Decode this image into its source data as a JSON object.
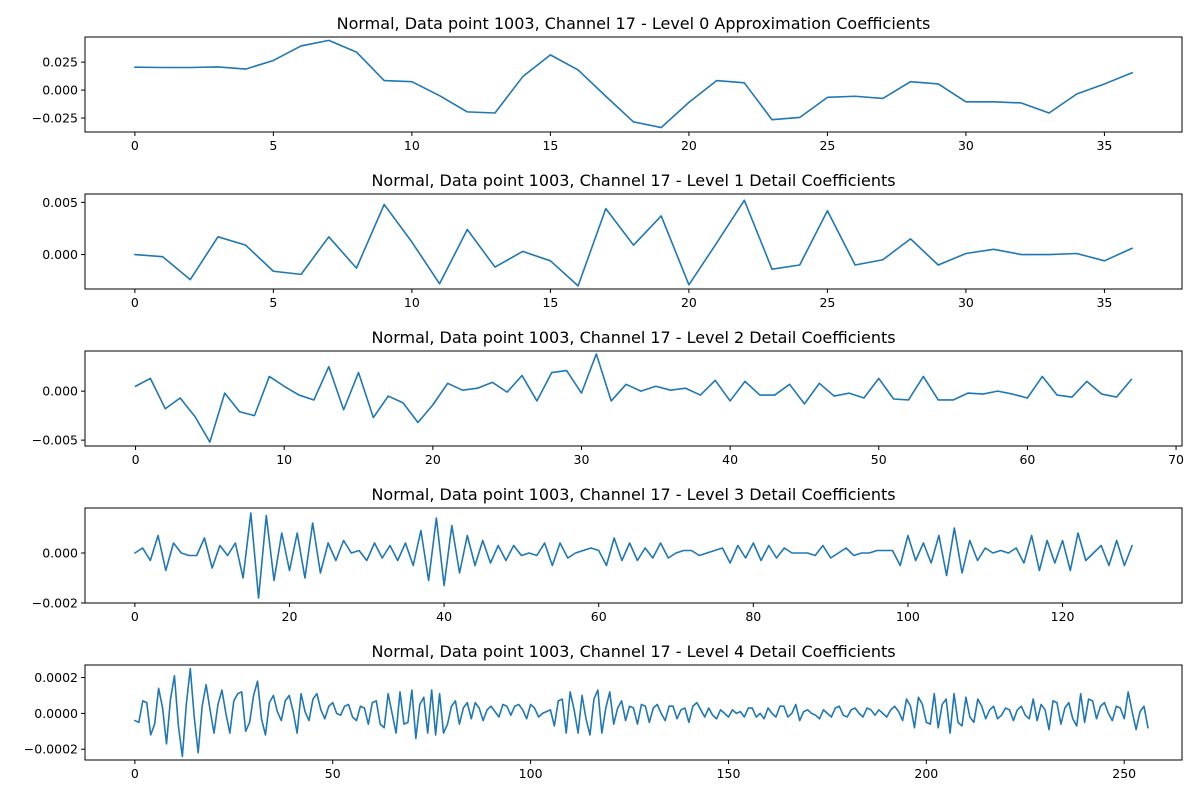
{
  "figure": {
    "line_color": "#1f77b4"
  },
  "chart_data": [
    {
      "type": "line",
      "title": "Normal, Data point 1003, Channel 17 - Level 0 Approximation Coefficients",
      "xlim": [
        -1.8,
        37.8
      ],
      "ylim": [
        -0.0375,
        0.0475
      ],
      "xticks": [
        0,
        5,
        10,
        15,
        20,
        25,
        30,
        35
      ],
      "xtick_labels": [
        "0",
        "5",
        "10",
        "15",
        "20",
        "25",
        "30",
        "35"
      ],
      "yticks": [
        -0.025,
        0.0,
        0.025
      ],
      "ytick_labels": [
        "−0.025",
        "0.000",
        "0.025"
      ],
      "series": [
        {
          "values": [
            0.0205,
            0.0202,
            0.0202,
            0.0207,
            0.0188,
            0.0265,
            0.0395,
            0.0445,
            0.034,
            0.0085,
            0.0075,
            -0.005,
            -0.0195,
            -0.0205,
            0.012,
            0.0315,
            0.018,
            -0.0055,
            -0.0285,
            -0.0335,
            -0.011,
            0.0085,
            0.0065,
            -0.0265,
            -0.0245,
            -0.0065,
            -0.0055,
            -0.0075,
            0.0075,
            0.0055,
            -0.0105,
            -0.0105,
            -0.0115,
            -0.0205,
            -0.0035,
            0.0055,
            0.0155
          ]
        }
      ]
    },
    {
      "type": "line",
      "title": "Normal, Data point 1003, Channel 17 - Level 1 Detail Coefficients",
      "xlim": [
        -1.8,
        37.8
      ],
      "ylim": [
        -0.0033,
        0.0058
      ],
      "xticks": [
        0,
        5,
        10,
        15,
        20,
        25,
        30,
        35
      ],
      "xtick_labels": [
        "0",
        "5",
        "10",
        "15",
        "20",
        "25",
        "30",
        "35"
      ],
      "yticks": [
        0.0,
        0.005
      ],
      "ytick_labels": [
        "0.000",
        "0.005"
      ],
      "series": [
        {
          "values": [
            0.0,
            -0.0002,
            -0.0024,
            0.0017,
            0.0009,
            -0.0016,
            -0.0019,
            0.0017,
            -0.0013,
            0.0048,
            0.0012,
            -0.0028,
            0.0024,
            -0.0012,
            0.0003,
            -0.0006,
            -0.003,
            0.0044,
            0.0009,
            0.0037,
            -0.0029,
            0.0011,
            0.0052,
            -0.0014,
            -0.001,
            0.0042,
            -0.001,
            -0.0005,
            0.0015,
            -0.001,
            0.0001,
            0.0005,
            0.0,
            0.0,
            0.0001,
            -0.0006,
            0.0006
          ]
        }
      ]
    },
    {
      "type": "line",
      "title": "Normal, Data point 1003, Channel 17 - Level 2 Detail Coefficients",
      "xlim": [
        -3.4,
        70.4
      ],
      "ylim": [
        -0.0056,
        0.0041
      ],
      "xticks": [
        0,
        10,
        20,
        30,
        40,
        50,
        60,
        70
      ],
      "xtick_labels": [
        "0",
        "10",
        "20",
        "30",
        "40",
        "50",
        "60",
        "70"
      ],
      "yticks": [
        -0.005,
        0.0
      ],
      "ytick_labels": [
        "−0.005",
        "0.000"
      ],
      "series": [
        {
          "values": [
            0.0005,
            0.0013,
            -0.0018,
            -0.0007,
            -0.0026,
            -0.0052,
            -0.0002,
            -0.0021,
            -0.0025,
            0.0015,
            0.0005,
            -0.0004,
            -0.0009,
            0.0025,
            -0.0019,
            0.0019,
            -0.0027,
            -0.0005,
            -0.0012,
            -0.0032,
            -0.0014,
            0.0008,
            0.0001,
            0.0003,
            0.0009,
            -0.0001,
            0.0016,
            -0.001,
            0.0019,
            0.0021,
            -0.0002,
            0.0038,
            -0.001,
            0.0007,
            0.0,
            0.0005,
            0.0001,
            0.0003,
            -0.0004,
            0.0011,
            -0.001,
            0.001,
            -0.0004,
            -0.0004,
            0.0007,
            -0.0013,
            0.0008,
            -0.0005,
            -0.0002,
            -0.0007,
            0.0013,
            -0.0008,
            -0.0009,
            0.0015,
            -0.0009,
            -0.0009,
            -0.0002,
            -0.0003,
            0.0,
            -0.0003,
            -0.0007,
            0.0015,
            -0.0004,
            -0.0006,
            0.001,
            -0.0003,
            -0.0006,
            0.0012
          ]
        }
      ]
    },
    {
      "type": "line",
      "title": "Normal, Data point 1003, Channel 17 - Level 3 Detail Coefficients",
      "xlim": [
        -6.45,
        135.45
      ],
      "ylim": [
        -0.002,
        0.0018
      ],
      "xticks": [
        0,
        20,
        40,
        60,
        80,
        100,
        120
      ],
      "xtick_labels": [
        "0",
        "20",
        "40",
        "60",
        "80",
        "100",
        "120"
      ],
      "yticks": [
        -0.002,
        0.0
      ],
      "ytick_labels": [
        "−0.002",
        "0.000"
      ],
      "series": [
        {
          "values": [
            0.0,
            0.0002,
            -0.0003,
            0.0007,
            -0.0007,
            0.0004,
            0.0,
            -0.0001,
            -0.0001,
            0.0006,
            -0.0006,
            0.0003,
            -0.0001,
            0.0004,
            -0.001,
            0.0016,
            -0.0018,
            0.0015,
            -0.0011,
            0.0008,
            -0.0007,
            0.0008,
            -0.001,
            0.0012,
            -0.0008,
            0.0004,
            -0.0003,
            0.0005,
            0.0,
            0.0001,
            -0.0003,
            0.0004,
            -0.0002,
            0.0003,
            -0.0003,
            0.0004,
            -0.0005,
            0.0009,
            -0.0011,
            0.0014,
            -0.0013,
            0.0011,
            -0.0008,
            0.0007,
            -0.0005,
            0.0005,
            -0.0004,
            0.0003,
            -0.0003,
            0.0003,
            -0.0001,
            0.0,
            -0.0001,
            0.0004,
            -0.0005,
            0.0004,
            -0.0002,
            0.0,
            0.0001,
            0.0002,
            0.0001,
            -0.0005,
            0.0006,
            -0.0003,
            0.0004,
            -0.0003,
            0.0002,
            -0.0002,
            0.0004,
            -0.0002,
            0.0,
            0.0001,
            0.0001,
            -0.0001,
            0.0,
            0.0001,
            0.0002,
            -0.0004,
            0.0003,
            -0.0002,
            0.0004,
            -0.0003,
            0.0003,
            -0.0002,
            0.0002,
            0.0,
            0.0,
            0.0,
            -0.0001,
            0.0003,
            -0.0002,
            0.0,
            0.0002,
            -0.0001,
            0.0,
            0.0,
            0.0001,
            0.0001,
            0.0001,
            -0.0005,
            0.0007,
            -0.0003,
            0.0004,
            -0.0004,
            0.0007,
            -0.0009,
            0.001,
            -0.0008,
            0.0005,
            -0.0003,
            0.0002,
            0.0,
            0.0001,
            0.0,
            0.0002,
            -0.0004,
            0.0007,
            -0.0007,
            0.0005,
            -0.0004,
            0.0005,
            -0.0007,
            0.0008,
            -0.0003,
            0.0,
            0.0003,
            -0.0005,
            0.0005,
            -0.0005,
            0.0003
          ]
        }
      ]
    },
    {
      "type": "line",
      "title": "Normal, Data point 1003, Channel 17 - Level 4 Detail Coefficients",
      "xlim": [
        -12.6,
        264.6
      ],
      "ylim": [
        -0.00026,
        0.00027
      ],
      "xticks": [
        0,
        50,
        100,
        150,
        200,
        250
      ],
      "xtick_labels": [
        "0",
        "50",
        "100",
        "150",
        "200",
        "250"
      ],
      "yticks": [
        -0.0002,
        0.0,
        0.0002
      ],
      "ytick_labels": [
        "−0.0002",
        "0.0000",
        "0.0002"
      ],
      "series": [
        {
          "values": [
            -4e-05,
            -5e-05,
            7e-05,
            6e-05,
            -0.00012,
            -6e-05,
            0.00014,
            3e-05,
            -0.00017,
            8e-05,
            0.00021,
            -7e-05,
            -0.00024,
            5e-05,
            0.00025,
            -2e-05,
            -0.00022,
            4e-05,
            0.00016,
            2e-05,
            -0.00011,
            5e-05,
            0.00013,
            0.0,
            -0.00011,
            7e-05,
            0.00011,
            0.00012,
            -0.0001,
            -5e-05,
            0.0001,
            0.00018,
            -3e-05,
            -0.00012,
            6e-05,
            0.0001,
            1e-05,
            -4e-05,
            7e-05,
            0.0001,
            1e-05,
            -0.00011,
            0.00011,
            1e-05,
            -4e-05,
            8e-05,
            0.00011,
            2e-05,
            -3e-05,
            4e-05,
            6e-05,
            0.0,
            -1e-05,
            4e-05,
            5e-05,
            -2e-05,
            -4e-05,
            4e-05,
            3e-05,
            -6e-05,
            6e-05,
            7e-05,
            -6e-05,
            -8e-05,
            0.00011,
            0.0,
            -0.00011,
            0.00012,
            -6e-05,
            -5e-05,
            0.00013,
            -0.00014,
            5e-05,
            9e-05,
            -0.00011,
            0.00013,
            -0.00012,
            0.00011,
            -0.00011,
            -6e-05,
            4e-05,
            7e-05,
            -6e-05,
            3e-05,
            6e-05,
            -3e-05,
            6e-05,
            3e-05,
            -4e-05,
            2e-05,
            4e-05,
            1e-05,
            -2e-05,
            5e-05,
            4e-05,
            -1e-05,
            4e-05,
            5e-05,
            2e-05,
            -3e-05,
            5e-05,
            3e-05,
            -2e-05,
            0.0,
            1e-05,
            2e-05,
            -7e-05,
            7e-05,
            8e-05,
            -0.00011,
            0.00012,
            2e-05,
            -0.00011,
            0.0001,
            -3e-05,
            -0.00012,
            8e-05,
            0.00013,
            -0.00011,
            3e-05,
            0.00012,
            -6e-05,
            3e-05,
            7e-05,
            -4e-05,
            4e-05,
            3e-05,
            -6e-05,
            5e-05,
            4e-05,
            -5e-05,
            3e-05,
            5e-05,
            0.0,
            -4e-05,
            4e-05,
            4e-05,
            -3e-05,
            2e-05,
            3e-05,
            -5e-05,
            4e-05,
            6e-05,
            2e-05,
            -2e-05,
            3e-05,
            -1e-05,
            -3e-05,
            2e-05,
            0.0,
            -2e-05,
            2e-05,
            0.0,
            1e-05,
            -2e-05,
            3e-05,
            3e-05,
            -2e-05,
            0.0,
            -3e-05,
            3e-05,
            0.0,
            -2e-05,
            4e-05,
            4e-05,
            -2e-05,
            0.0,
            5e-05,
            -4e-05,
            1e-05,
            2e-05,
            0.0,
            -1e-05,
            -3e-05,
            2e-05,
            0.0,
            -2e-05,
            3e-05,
            4e-05,
            -1e-05,
            -2e-05,
            2e-05,
            3e-05,
            0.0,
            -2e-05,
            3e-05,
            2e-05,
            -1e-05,
            2e-05,
            0.0,
            -2e-05,
            2e-05,
            4e-05,
            1e-05,
            -4e-05,
            8e-05,
            4e-05,
            -8e-05,
            9e-05,
            5e-05,
            -5e-05,
            -6e-05,
            0.00011,
            -8e-05,
            5e-05,
            8e-05,
            -0.00011,
            0.00011,
            -5e-05,
            -7e-05,
            9e-05,
            -2e-05,
            -5e-05,
            8e-05,
            4e-05,
            -3e-05,
            2e-05,
            4e-05,
            -3e-05,
            -1e-05,
            3e-05,
            2e-05,
            -4e-05,
            2e-05,
            4e-05,
            -1e-05,
            -3e-05,
            8e-05,
            -4e-05,
            5e-05,
            2e-05,
            -9e-05,
            7e-05,
            6e-05,
            -6e-05,
            3e-05,
            6e-05,
            -3e-05,
            -7e-05,
            0.00011,
            -5e-05,
            8e-05,
            7e-05,
            -3e-05,
            4e-05,
            6e-05,
            0.0,
            -4e-05,
            4e-05,
            3e-05,
            -3e-05,
            0.00012,
            1e-05,
            -9e-05,
            1e-05,
            4e-05,
            -8e-05
          ]
        }
      ]
    }
  ]
}
